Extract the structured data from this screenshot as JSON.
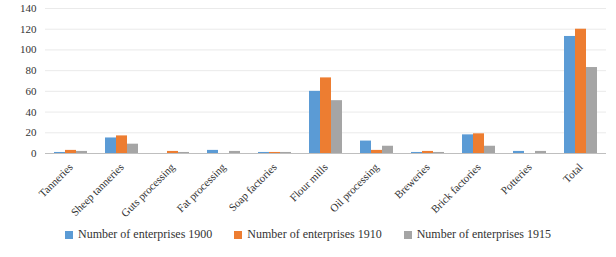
{
  "chart_data": {
    "type": "bar",
    "categories": [
      "Tanneries",
      "Sheep tanneries",
      "Guts processing",
      "Fat processing",
      "Soap factories",
      "Flour mills",
      "Oil processing",
      "Breweries",
      "Brick factories",
      "Potteries",
      "Total"
    ],
    "series": [
      {
        "name": "Number of enterprises 1900",
        "color": "#5b9bd5",
        "values": [
          1,
          15,
          0,
          3,
          1,
          60,
          12,
          1,
          18,
          2,
          113
        ]
      },
      {
        "name": "Number of enterprises 1910",
        "color": "#ed7d31",
        "values": [
          3,
          17,
          2,
          0,
          1,
          73,
          3,
          2,
          19,
          0,
          120
        ]
      },
      {
        "name": "Number of enterprises 1915",
        "color": "#a5a5a5",
        "values": [
          2,
          9,
          1,
          2,
          1,
          51,
          7,
          1,
          7,
          2,
          83
        ]
      }
    ],
    "ylim": [
      0,
      140
    ],
    "yticks": [
      0,
      20,
      40,
      60,
      80,
      100,
      120,
      140
    ],
    "grid": true,
    "legend": "bottom"
  }
}
